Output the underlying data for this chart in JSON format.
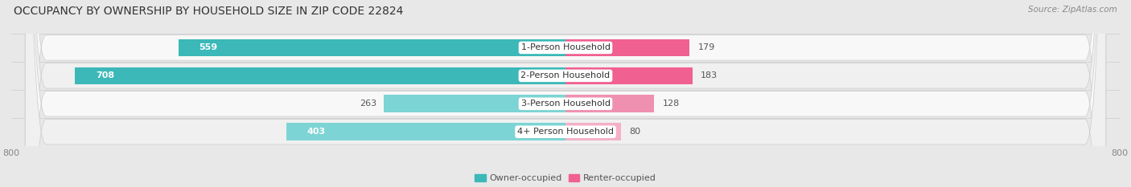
{
  "title": "OCCUPANCY BY OWNERSHIP BY HOUSEHOLD SIZE IN ZIP CODE 22824",
  "source": "Source: ZipAtlas.com",
  "categories": [
    "1-Person Household",
    "2-Person Household",
    "3-Person Household",
    "4+ Person Household"
  ],
  "owner_values": [
    559,
    708,
    263,
    403
  ],
  "renter_values": [
    179,
    183,
    128,
    80
  ],
  "owner_colors": [
    "#3CB8B8",
    "#3CB8B8",
    "#7DD4D4",
    "#7DD4D4"
  ],
  "renter_colors": [
    "#F06090",
    "#F06090",
    "#F090B0",
    "#F5B0C8"
  ],
  "axis_max": 800,
  "axis_min": -800,
  "background_color": "#e8e8e8",
  "row_bg_colors": [
    "#f8f8f8",
    "#f0f0f0",
    "#f8f8f8",
    "#f0f0f0"
  ],
  "title_fontsize": 10,
  "label_fontsize": 8,
  "tick_fontsize": 8,
  "legend_fontsize": 8,
  "owner_label_white_threshold": 400
}
